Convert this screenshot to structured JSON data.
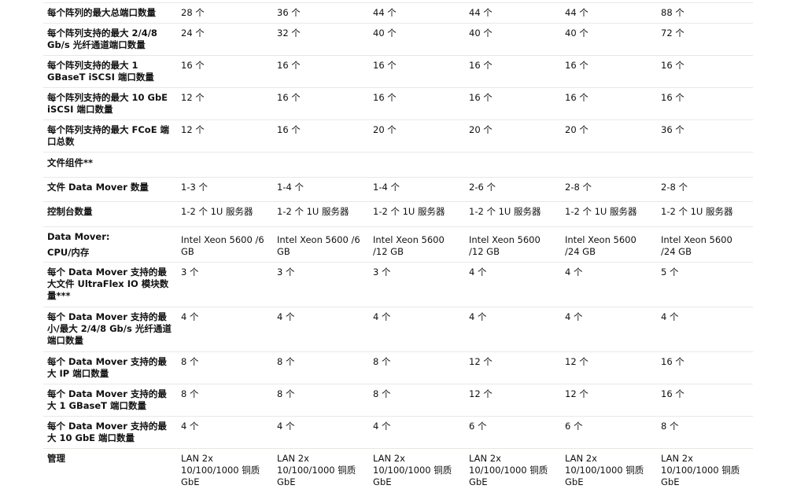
{
  "rows": [
    {
      "label": "每个阵列的最大总端口数量",
      "values": [
        "28 个",
        "36 个",
        "44 个",
        "44 个",
        "44 个",
        "88 个"
      ]
    },
    {
      "label": "每个阵列支持的最大 2/4/8 Gb/s 光纤通道端口数量",
      "values": [
        "24 个",
        "32 个",
        "40 个",
        "40 个",
        "40 个",
        "72 个"
      ]
    },
    {
      "label": "每个阵列支持的最大 1 GBaseT iSCSI 端口数量",
      "values": [
        "16 个",
        "16 个",
        "16 个",
        "16 个",
        "16 个",
        "16 个"
      ]
    },
    {
      "label": "每个阵列支持的最大 10 GbE iSCSI 端口数量",
      "values": [
        "12 个",
        "16 个",
        "16 个",
        "16 个",
        "16 个",
        "16 个"
      ]
    },
    {
      "label": "每个阵列支持的最大 FCoE 端口总数",
      "values": [
        "12 个",
        "16 个",
        "20 个",
        "20 个",
        "20 个",
        "36 个"
      ]
    },
    {
      "label": "文件组件**",
      "section": true,
      "values": []
    },
    {
      "label": "文件 Data Mover 数量",
      "values": [
        "1-3 个",
        "1-4 个",
        "1-4 个",
        "2-6 个",
        "2-8 个",
        "2-8 个"
      ]
    },
    {
      "label": "控制台数量",
      "values": [
        "1-2 个 1U 服务器",
        "1-2 个 1U 服务器",
        "1-2 个 1U 服务器",
        "1-2 个 1U 服务器",
        "1-2 个 1U 服务器",
        "1-2 个 1U 服务器"
      ]
    },
    {
      "label": "Data Mover:\nCPU/内存",
      "values": [
        "Intel Xeon 5600 /6 GB",
        "Intel Xeon 5600 /6 GB",
        "Intel Xeon 5600 /12 GB",
        "Intel Xeon 5600 /12 GB",
        "Intel Xeon 5600 /24 GB",
        "Intel Xeon 5600 /24 GB"
      ]
    },
    {
      "label": "每个 Data Mover 支持的最大文件 UltraFlex IO 模块数量***",
      "values": [
        "3 个",
        "3 个",
        "3 个",
        "4 个",
        "4 个",
        "5 个"
      ]
    },
    {
      "label": "每个 Data Mover 支持的最小/最大 2/4/8 Gb/s 光纤通道端口数量",
      "values": [
        "4 个",
        "4 个",
        "4 个",
        "4 个",
        "4 个",
        "4 个"
      ]
    },
    {
      "label": "每个 Data Mover 支持的最大 IP 端口数量",
      "values": [
        "8 个",
        "8 个",
        "8 个",
        "12 个",
        "12 个",
        "16 个"
      ]
    },
    {
      "label": "每个 Data Mover 支持的最大 1 GBaseT 端口数量",
      "values": [
        "8 个",
        "8 个",
        "8 个",
        "12 个",
        "12 个",
        "16 个"
      ]
    },
    {
      "label": "每个 Data Mover 支持的最大 10 GbE 端口数量",
      "values": [
        "4 个",
        "4 个",
        "4 个",
        "6 个",
        "6 个",
        "8 个"
      ]
    },
    {
      "label": "管理",
      "values": [
        "LAN 2x 10/100/1000 铜质 GbE",
        "LAN 2x 10/100/1000 铜质 GbE",
        "LAN 2x 10/100/1000 铜质 GbE",
        "LAN 2x 10/100/1000 铜质 GbE",
        "LAN 2x 10/100/1000 铜质 GbE",
        "LAN 2x 10/100/1000 铜质 GbE"
      ]
    }
  ]
}
